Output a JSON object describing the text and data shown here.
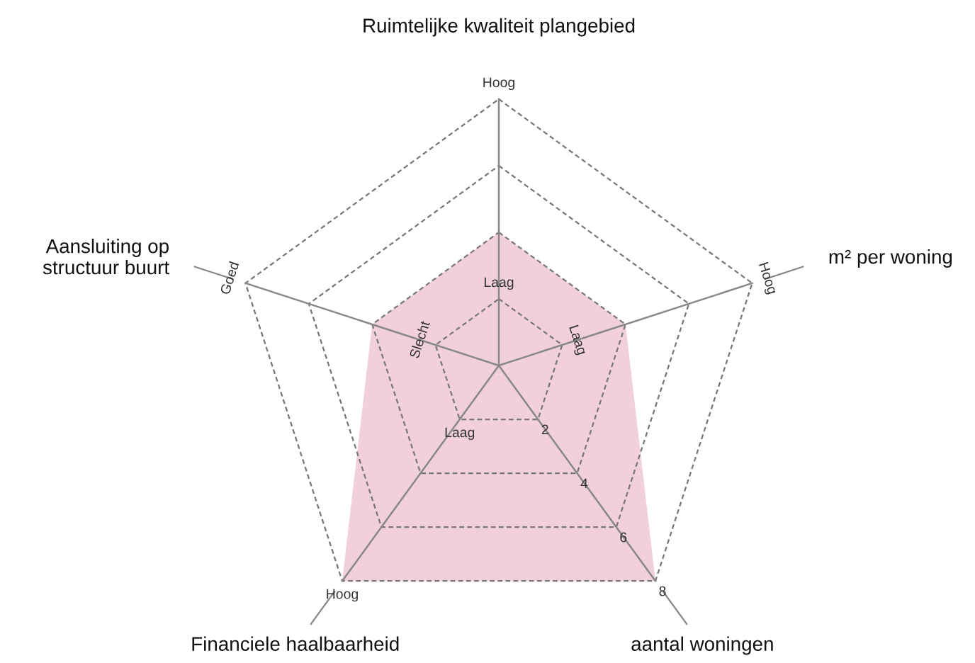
{
  "chart_data": {
    "type": "radar",
    "categories": [
      "Ruimtelijke kwaliteit plangebied",
      "m² per woning",
      "aantal woningen",
      "Financiele haalbaarheid",
      "Aansluiting op structuur buurt"
    ],
    "series": [
      {
        "color": "#f2cfdc",
        "values": [
          4,
          4,
          8,
          8,
          4
        ]
      }
    ],
    "ylim": [
      0,
      8
    ],
    "yticks": [
      2,
      4,
      6,
      8
    ],
    "grid": true,
    "marker": "none",
    "annotations": [
      "Laag",
      "Hoog",
      "Laag",
      "Hoog",
      "Laag",
      "Hoog",
      "Slecht",
      "Goed"
    ]
  }
}
